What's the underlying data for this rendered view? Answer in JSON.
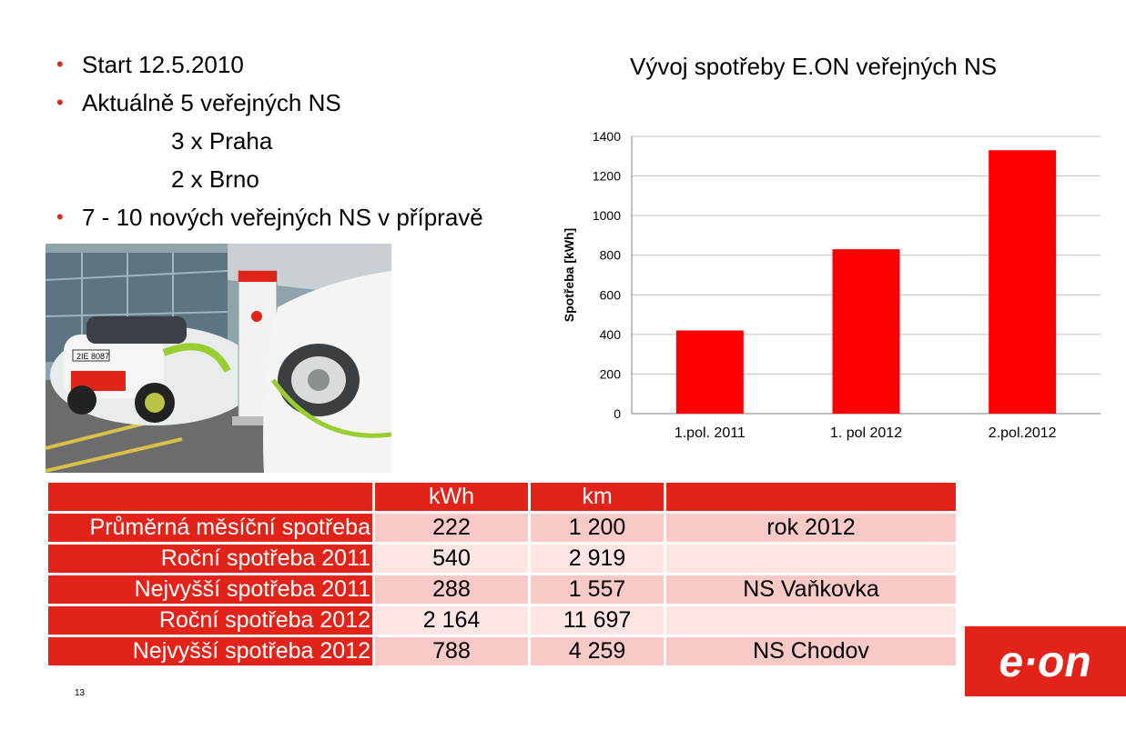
{
  "bullets": [
    {
      "text": "Start 12.5.2010",
      "indent": false,
      "bullet": true
    },
    {
      "text": "Aktuálně 5 veřejných NS",
      "indent": false,
      "bullet": true
    },
    {
      "text": "3 x Praha",
      "indent": true,
      "bullet": false
    },
    {
      "text": "2 x Brno",
      "indent": true,
      "bullet": false
    },
    {
      "text": "7 - 10 nových veřejných NS v přípravě",
      "indent": false,
      "bullet": true
    }
  ],
  "bullet_symbol": "•",
  "chart_data": {
    "type": "bar",
    "title": "Vývoj spotřeby E.ON veřejných NS",
    "ylabel": "Spotřeba [kWh]",
    "xlabel": "",
    "categories": [
      "1.pol. 2011",
      "1. pol 2012",
      "2.pol.2012"
    ],
    "values": [
      420,
      830,
      1330
    ],
    "ylim": [
      0,
      1400
    ],
    "yticks": [
      0,
      200,
      400,
      600,
      800,
      1000,
      1200,
      1400
    ],
    "grid": true,
    "bar_color": "#ff0000"
  },
  "table": {
    "headers": [
      "",
      "kWh",
      "km",
      ""
    ],
    "rows": [
      {
        "label": "Průměrná měsíční spotřeba",
        "kwh": "222",
        "km": "1 200",
        "note": "rok 2012"
      },
      {
        "label": "Roční spotřeba 2011",
        "kwh": "540",
        "km": "2 919",
        "note": ""
      },
      {
        "label": "Nejvyšší spotřeba 2011",
        "kwh": "288",
        "km": "1 557",
        "note": "NS Vaňkovka"
      },
      {
        "label": "Roční spotřeba 2012",
        "kwh": "2 164",
        "km": "11 697",
        "note": ""
      },
      {
        "label": "Nejvyšší spotřeba 2012",
        "kwh": "788",
        "km": "4 259",
        "note": "NS Chodov"
      }
    ]
  },
  "photo": {
    "plate": "2IE 8087"
  },
  "logo": {
    "text": "e·on"
  },
  "page_number": "13",
  "colors": {
    "brand": "#e2231a",
    "row_odd": "#f8c9c6",
    "row_even": "#fce5e3"
  }
}
